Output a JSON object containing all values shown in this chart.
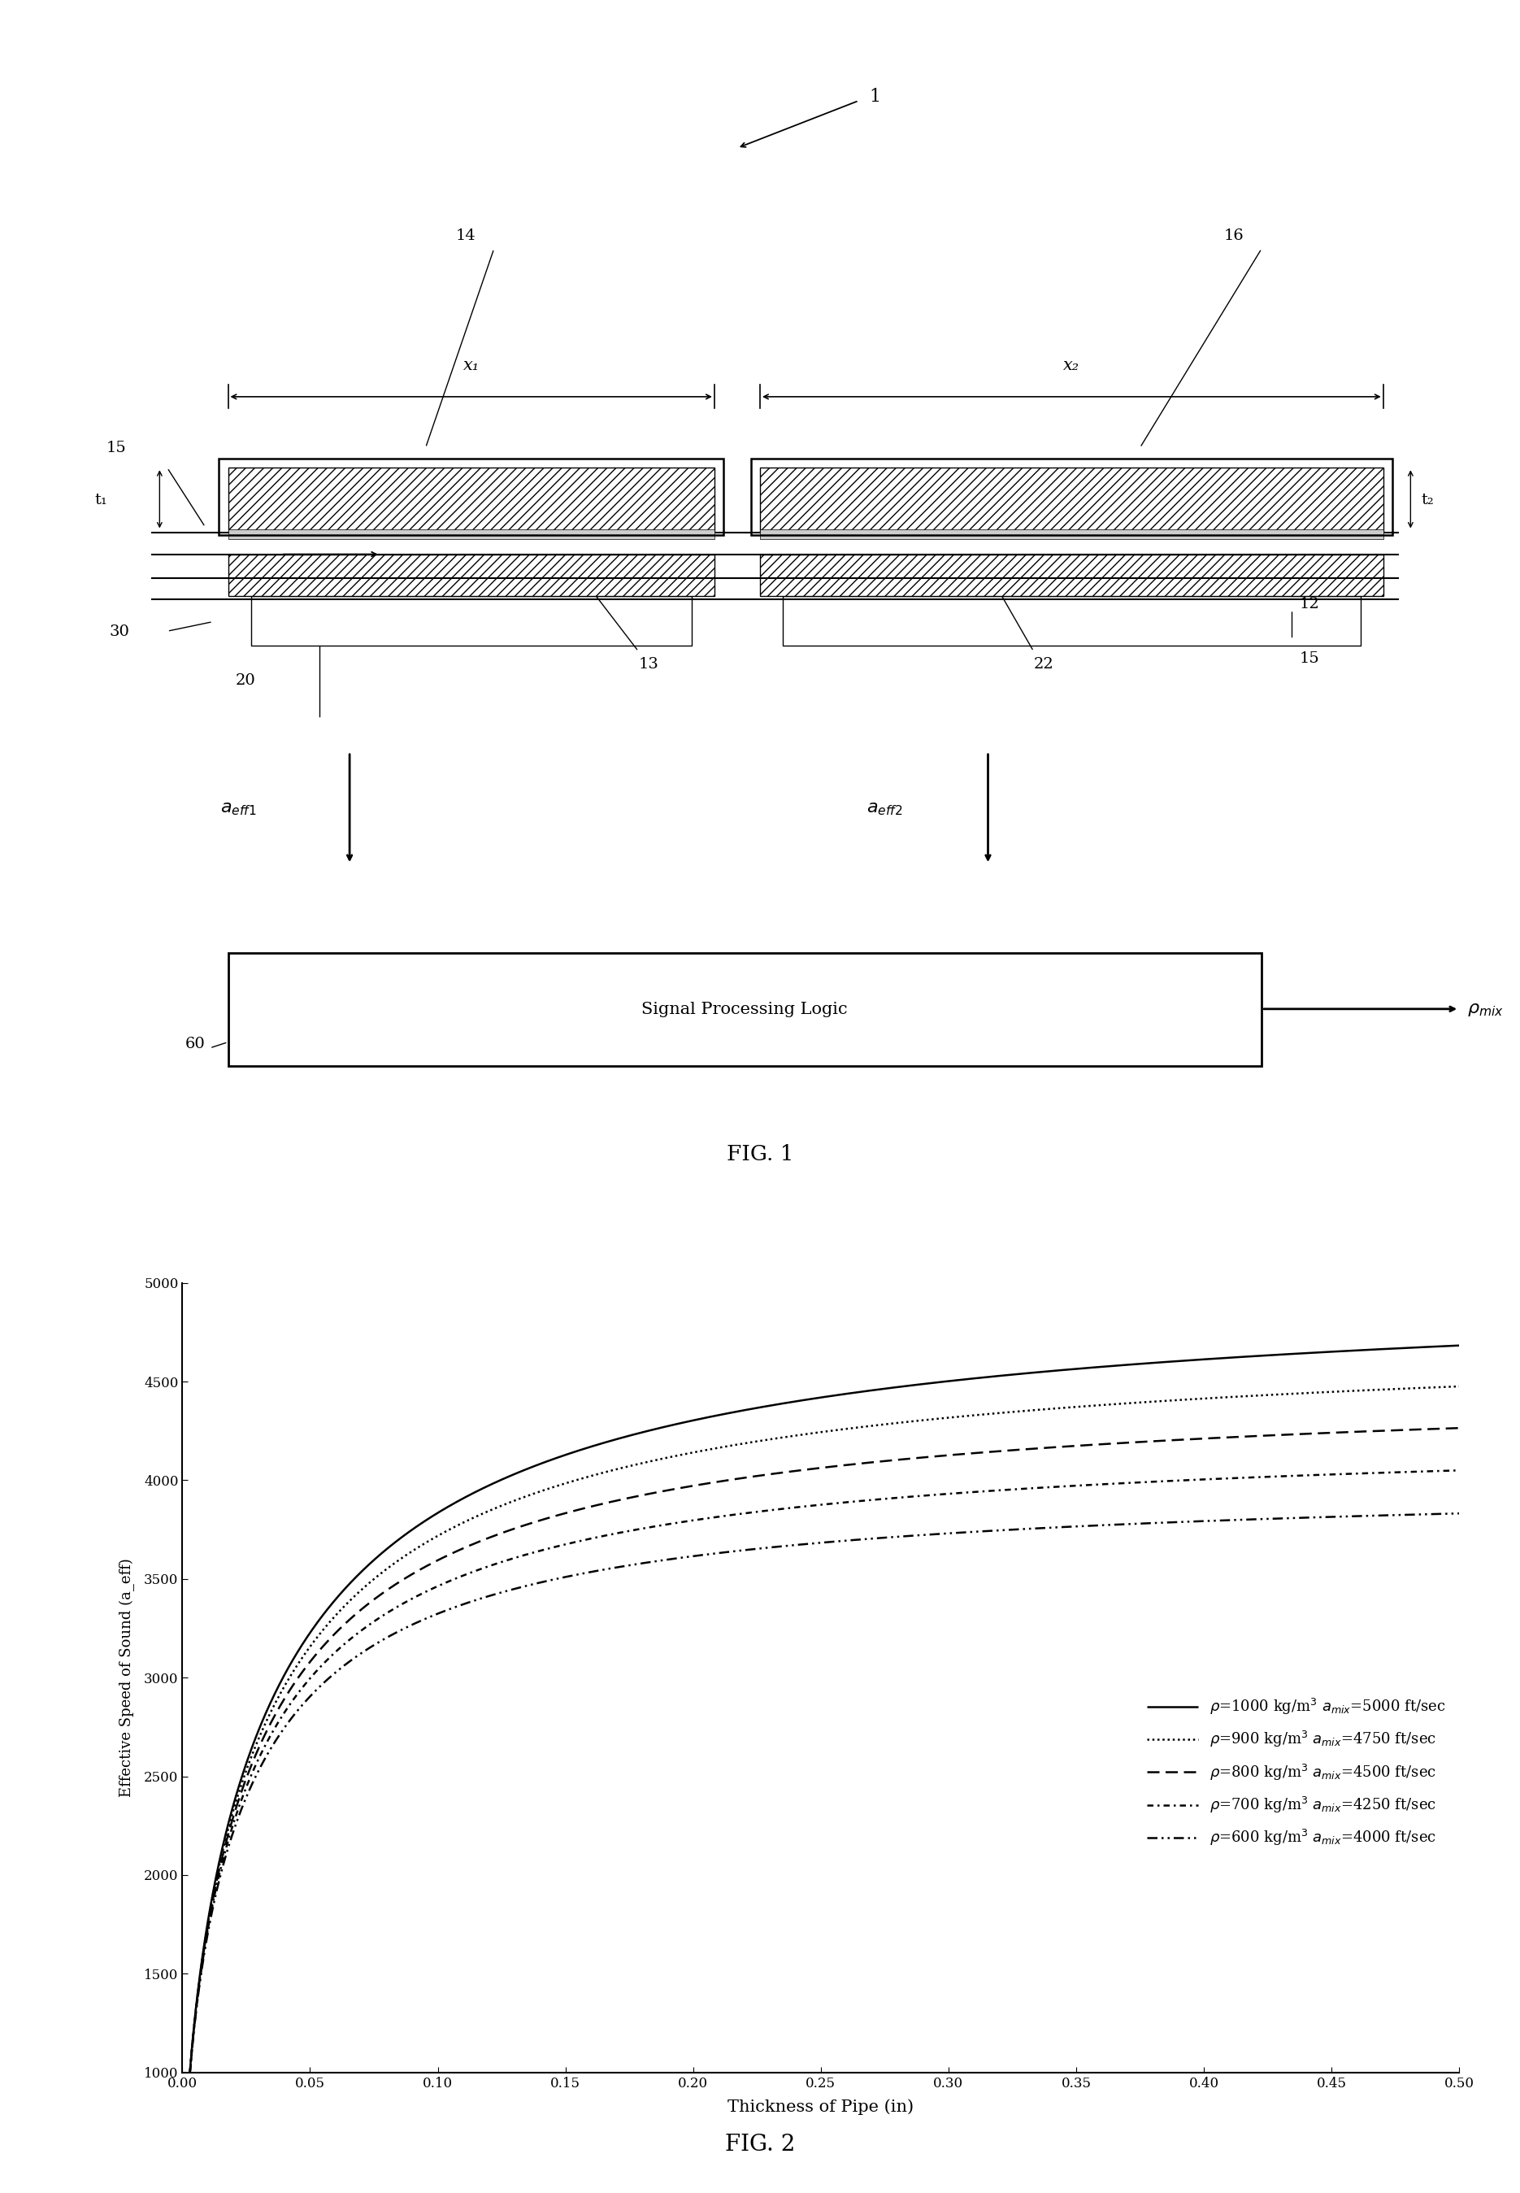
{
  "fig_width": 18.7,
  "fig_height": 26.97,
  "bg_color": "#ffffff",
  "fig1": {
    "fig_label": "FIG. 1"
  },
  "fig2": {
    "xlabel": "Thickness of Pipe (in)",
    "ylabel": "Effective Speed of Sound (a_eff)",
    "ylim": [
      1000,
      5000
    ],
    "xlim": [
      0,
      0.5
    ],
    "yticks": [
      1000,
      1500,
      2000,
      2500,
      3000,
      3500,
      4000,
      4500,
      5000
    ],
    "xticks": [
      0,
      0.05,
      0.1,
      0.15,
      0.2,
      0.25,
      0.3,
      0.35,
      0.4,
      0.45,
      0.5
    ],
    "curves": [
      {
        "rho": 1000,
        "a_mix": 5000,
        "beta": 0.0035
      },
      {
        "rho": 900,
        "a_mix": 4750,
        "beta": 0.0035
      },
      {
        "rho": 800,
        "a_mix": 4500,
        "beta": 0.0035
      },
      {
        "rho": 700,
        "a_mix": 4250,
        "beta": 0.0035
      },
      {
        "rho": 600,
        "a_mix": 4000,
        "beta": 0.0035
      }
    ],
    "fig_label": "FIG. 2",
    "line_color": "#000000",
    "legend_labels": [
      "rho=1000 kg/m3 amix=5000 ft/sec",
      "rho=900 kg/m3 amix=4750 ft/sec",
      "rho=800 kg/m3 amix=4500 ft/sec",
      "rho=700 kg/m3 amix=4250 ft/sec",
      "rho=600 kg/m3 amix=4000 ft/sec"
    ]
  }
}
